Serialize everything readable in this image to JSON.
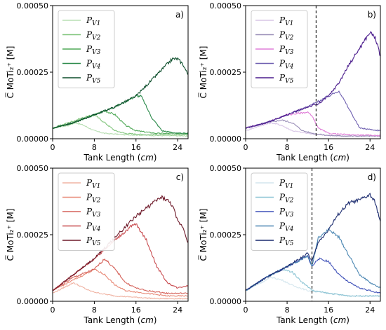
{
  "chart_data": [
    {
      "type": "line",
      "panel_label": "a)",
      "xlabel": "Tank Length (cm)",
      "ylabel": "C̅ MoTi₂⁺ [M]",
      "xlim": [
        0,
        26
      ],
      "ylim": [
        0,
        0.0005
      ],
      "x_ticks": [
        "0",
        "8",
        "16",
        "24"
      ],
      "y_ticks": [
        "0.00000",
        "0.00025",
        "0.00050"
      ],
      "legend_placement": "top-left",
      "vline_x": null,
      "series": [
        {
          "name": "P",
          "sub": "V1",
          "color": "#b9dfb4",
          "x": [
            0,
            3,
            4.5,
            6,
            8,
            10,
            14,
            20,
            26
          ],
          "y": [
            4e-05,
            5e-05,
            6e-05,
            5e-05,
            3e-05,
            2e-05,
            1.5e-05,
            1.2e-05,
            1e-05
          ]
        },
        {
          "name": "P",
          "sub": "V2",
          "color": "#80c57c",
          "x": [
            0,
            3,
            6,
            8,
            10,
            12,
            14,
            18,
            26
          ],
          "y": [
            4e-05,
            6e-05,
            8e-05,
            9e-05,
            6e-05,
            3e-05,
            2e-05,
            1.5e-05,
            1.5e-05
          ]
        },
        {
          "name": "P",
          "sub": "V3",
          "color": "#4fa957",
          "x": [
            0,
            4,
            8,
            10,
            12,
            14,
            16,
            20,
            26
          ],
          "y": [
            4e-05,
            6e-05,
            9e-05,
            0.000105,
            9e-05,
            5e-05,
            3e-05,
            2e-05,
            2e-05
          ]
        },
        {
          "name": "P",
          "sub": "V4",
          "color": "#2b8a4a",
          "x": [
            0,
            4,
            8,
            12,
            16,
            17,
            19,
            21,
            24,
            26
          ],
          "y": [
            4e-05,
            6e-05,
            9e-05,
            0.00012,
            0.00016,
            0.00016,
            8e-05,
            3e-05,
            2e-05,
            2e-05
          ]
        },
        {
          "name": "P",
          "sub": "V5",
          "color": "#0b4d2a",
          "x": [
            0,
            4,
            8,
            12,
            16,
            20,
            23,
            24,
            25,
            26
          ],
          "y": [
            4e-05,
            6e-05,
            9e-05,
            0.00012,
            0.00016,
            0.00024,
            0.0003,
            0.0003,
            0.00028,
            0.00024
          ]
        }
      ]
    },
    {
      "type": "line",
      "panel_label": "b)",
      "xlabel": "Tank Length (cm)",
      "ylabel": "C̅ MoTi₂⁺ [M]",
      "xlim": [
        0,
        26
      ],
      "ylim": [
        0,
        0.0005
      ],
      "x_ticks": [
        "0",
        "8",
        "16",
        "24"
      ],
      "y_ticks": [
        "0.00000",
        "0.00025",
        "0.00050"
      ],
      "legend_placement": "top-left",
      "vline_x": 13.6,
      "series": [
        {
          "name": "P",
          "sub": "V1",
          "color": "#d8c6e6",
          "x": [
            0,
            3,
            5,
            7,
            9,
            12,
            16,
            20,
            26
          ],
          "y": [
            3e-05,
            5e-05,
            6e-05,
            5e-05,
            3e-05,
            2e-05,
            1.2e-05,
            1e-05,
            1e-05
          ]
        },
        {
          "name": "P",
          "sub": "V2",
          "color": "#9a8fb8",
          "x": [
            0,
            4,
            7,
            9,
            11,
            13,
            16,
            20,
            26
          ],
          "y": [
            4e-05,
            6e-05,
            7e-05,
            6e-05,
            3e-05,
            2e-05,
            1.2e-05,
            1e-05,
            1e-05
          ]
        },
        {
          "name": "P",
          "sub": "V3",
          "color": "#e07fd8",
          "x": [
            0,
            4,
            8,
            12,
            13,
            14,
            16,
            20,
            26
          ],
          "y": [
            4e-05,
            6e-05,
            9e-05,
            0.0001,
            8e-05,
            4e-05,
            2e-05,
            1.5e-05,
            1.2e-05
          ]
        },
        {
          "name": "P",
          "sub": "V4",
          "color": "#6e5fb0",
          "x": [
            0,
            4,
            8,
            12,
            14,
            16,
            18,
            20,
            22,
            26
          ],
          "y": [
            4e-05,
            6e-05,
            9e-05,
            0.00012,
            0.00014,
            0.00016,
            0.00018,
            0.00011,
            4e-05,
            3e-05
          ]
        },
        {
          "name": "P",
          "sub": "V5",
          "color": "#4a1b8c",
          "x": [
            0,
            4,
            8,
            12,
            14,
            16,
            18,
            20,
            22,
            24,
            25,
            26
          ],
          "y": [
            4e-05,
            6e-05,
            9e-05,
            0.00012,
            0.00013,
            0.00016,
            0.00021,
            0.00028,
            0.00034,
            0.0004,
            0.00038,
            0.00031
          ]
        }
      ]
    },
    {
      "type": "line",
      "panel_label": "c)",
      "xlabel": "Tank Length (cm)",
      "ylabel": "C̅ MoTi₂⁺ [M]",
      "xlim": [
        0,
        26
      ],
      "ylim": [
        0,
        0.0005
      ],
      "x_ticks": [
        "0",
        "8",
        "16",
        "24"
      ],
      "y_ticks": [
        "0.00000",
        "0.00025",
        "0.00050"
      ],
      "legend_placement": "top-left",
      "vline_x": null,
      "series": [
        {
          "name": "P",
          "sub": "V1",
          "color": "#f0b4a4",
          "x": [
            0,
            2,
            4,
            5,
            7,
            9,
            12,
            16,
            20,
            26
          ],
          "y": [
            3e-05,
            5e-05,
            7e-05,
            6e-05,
            4e-05,
            3e-05,
            2e-05,
            1.5e-05,
            1e-05,
            1e-05
          ]
        },
        {
          "name": "P",
          "sub": "V2",
          "color": "#e88a78",
          "x": [
            0,
            3,
            6,
            8,
            10,
            12,
            14,
            18,
            22,
            26
          ],
          "y": [
            4e-05,
            7e-05,
            0.0001,
            0.00012,
            0.0001,
            6e-05,
            4e-05,
            3e-05,
            2e-05,
            2e-05
          ]
        },
        {
          "name": "P",
          "sub": "V3",
          "color": "#d5625a",
          "x": [
            0,
            4,
            8,
            10,
            12,
            14,
            16,
            18,
            22,
            26
          ],
          "y": [
            4e-05,
            9e-05,
            0.00012,
            0.00016,
            0.00012,
            7e-05,
            5e-05,
            4e-05,
            3e-05,
            3e-05
          ]
        },
        {
          "name": "P",
          "sub": "V4",
          "color": "#c84a4e",
          "x": [
            0,
            4,
            8,
            12,
            15,
            16,
            18,
            20,
            22,
            24,
            26
          ],
          "y": [
            4e-05,
            0.0001,
            0.00016,
            0.00023,
            0.00028,
            0.00029,
            0.00023,
            0.00013,
            7e-05,
            5e-05,
            6e-05
          ]
        },
        {
          "name": "P",
          "sub": "V5",
          "color": "#6e1a2a",
          "x": [
            0,
            4,
            8,
            12,
            16,
            20,
            21,
            22,
            23,
            24,
            25,
            26
          ],
          "y": [
            4e-05,
            0.0001,
            0.00016,
            0.00024,
            0.00032,
            0.00038,
            0.00039,
            0.00038,
            0.00036,
            0.0003,
            0.00028,
            0.00022
          ]
        }
      ]
    },
    {
      "type": "line",
      "panel_label": "d)",
      "xlabel": "Tank Length (cm)",
      "ylabel": "C̅ MoTi₂⁺ [M]",
      "xlim": [
        0,
        26
      ],
      "ylim": [
        0,
        0.0005
      ],
      "x_ticks": [
        "0",
        "8",
        "16",
        "24"
      ],
      "y_ticks": [
        "0.00000",
        "0.00025",
        "0.00050"
      ],
      "legend_placement": "top-left",
      "vline_x": 12.8,
      "series": [
        {
          "name": "P",
          "sub": "V1",
          "color": "#d4e6ee",
          "x": [
            0,
            3,
            5,
            7,
            9,
            12,
            16,
            20,
            26
          ],
          "y": [
            4e-05,
            7e-05,
            9e-05,
            8e-05,
            6e-05,
            4e-05,
            3e-05,
            2e-05,
            2e-05
          ]
        },
        {
          "name": "P",
          "sub": "V2",
          "color": "#8cc4d4",
          "x": [
            0,
            4,
            7,
            9,
            11,
            13,
            16,
            20,
            26
          ],
          "y": [
            4e-05,
            9e-05,
            0.00012,
            0.00011,
            7e-05,
            4e-05,
            3e-05,
            2e-05,
            2e-05
          ]
        },
        {
          "name": "P",
          "sub": "V3",
          "color": "#3e50b8",
          "x": [
            0,
            4,
            8,
            12,
            12.8,
            14,
            16,
            18,
            20,
            22,
            24,
            26
          ],
          "y": [
            4e-05,
            9e-05,
            0.00013,
            0.00017,
            0.00013,
            0.00016,
            0.00015,
            0.0001,
            7e-05,
            5e-05,
            4e-05,
            3e-05
          ]
        },
        {
          "name": "P",
          "sub": "V4",
          "color": "#4a86b2",
          "x": [
            0,
            4,
            8,
            12,
            12.8,
            14,
            16,
            18,
            20,
            22,
            24,
            26
          ],
          "y": [
            4e-05,
            9e-05,
            0.00013,
            0.00017,
            0.00013,
            0.00024,
            0.00027,
            0.00024,
            0.00017,
            0.0001,
            7e-05,
            5e-05
          ]
        },
        {
          "name": "P",
          "sub": "V5",
          "color": "#1a2a6e",
          "x": [
            0,
            4,
            8,
            12,
            12.8,
            14,
            16,
            18,
            20,
            22,
            24,
            25,
            26
          ],
          "y": [
            4e-05,
            9e-05,
            0.00013,
            0.00018,
            0.00015,
            0.00022,
            0.00027,
            0.00033,
            0.00037,
            0.00038,
            0.0004,
            0.00037,
            0.0003
          ]
        }
      ]
    }
  ]
}
